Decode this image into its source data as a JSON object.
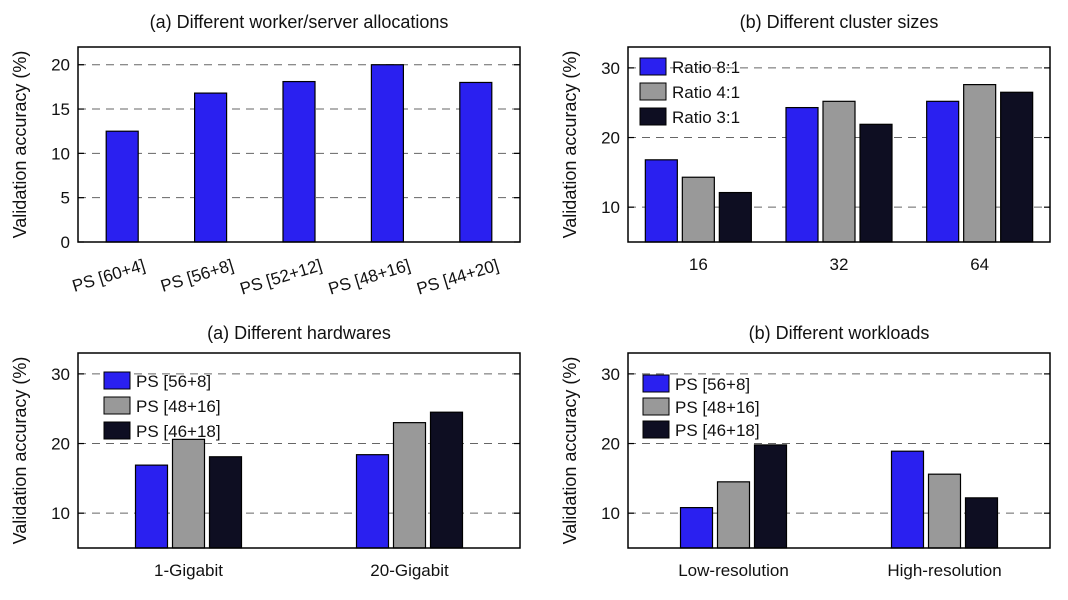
{
  "colors": {
    "series1": "#2a20f0",
    "series2": "#999999",
    "series3": "#0e0e22"
  },
  "chart_data": [
    {
      "type": "bar",
      "title": "(a) Different worker/server allocations",
      "ylabel": "Validation accuracy (%)",
      "xlabel": "",
      "categories": [
        "PS [60+4]",
        "PS [56+8]",
        "PS [52+12]",
        "PS [48+16]",
        "PS [44+20]"
      ],
      "series": [
        {
          "values": [
            12.5,
            16.8,
            18.1,
            20.0,
            18.0
          ]
        }
      ],
      "ylim": [
        0,
        22
      ],
      "yticks": [
        "0",
        "5",
        "10",
        "15",
        "20"
      ],
      "grid": true,
      "legend": null
    },
    {
      "type": "bar",
      "title": "(b) Different cluster sizes",
      "ylabel": "Validation accuracy (%)",
      "xlabel": "",
      "categories": [
        "16",
        "32",
        "64"
      ],
      "series": [
        {
          "name": "Ratio 8:1",
          "values": [
            16.8,
            24.3,
            25.2
          ]
        },
        {
          "name": "Ratio 4:1",
          "values": [
            14.3,
            25.2,
            27.6
          ]
        },
        {
          "name": "Ratio 3:1",
          "values": [
            12.1,
            21.9,
            26.5
          ]
        }
      ],
      "ylim": [
        5,
        33
      ],
      "yticks": [
        "10",
        "20",
        "30"
      ],
      "grid": true,
      "legend": "top-left"
    },
    {
      "type": "bar",
      "title": "(a) Different hardwares",
      "ylabel": "Validation accuracy (%)",
      "xlabel": "",
      "categories": [
        "1-Gigabit",
        "20-Gigabit"
      ],
      "series": [
        {
          "name": "PS [56+8]",
          "values": [
            16.9,
            18.4
          ]
        },
        {
          "name": "PS [48+16]",
          "values": [
            20.6,
            23.0
          ]
        },
        {
          "name": "PS [46+18]",
          "values": [
            18.1,
            24.5
          ]
        }
      ],
      "ylim": [
        5,
        33
      ],
      "yticks": [
        "10",
        "20",
        "30"
      ],
      "grid": true,
      "legend": "top-left"
    },
    {
      "type": "bar",
      "title": "(b) Different workloads",
      "ylabel": "Validation accuracy (%)",
      "xlabel": "",
      "categories": [
        "Low-resolution",
        "High-resolution"
      ],
      "series": [
        {
          "name": "PS [56+8]",
          "values": [
            10.8,
            18.9
          ]
        },
        {
          "name": "PS [48+16]",
          "values": [
            14.5,
            15.6
          ]
        },
        {
          "name": "PS [46+18]",
          "values": [
            19.8,
            12.2
          ]
        }
      ],
      "ylim": [
        5,
        33
      ],
      "yticks": [
        "10",
        "20",
        "30"
      ],
      "grid": true,
      "legend": "top-left"
    }
  ]
}
